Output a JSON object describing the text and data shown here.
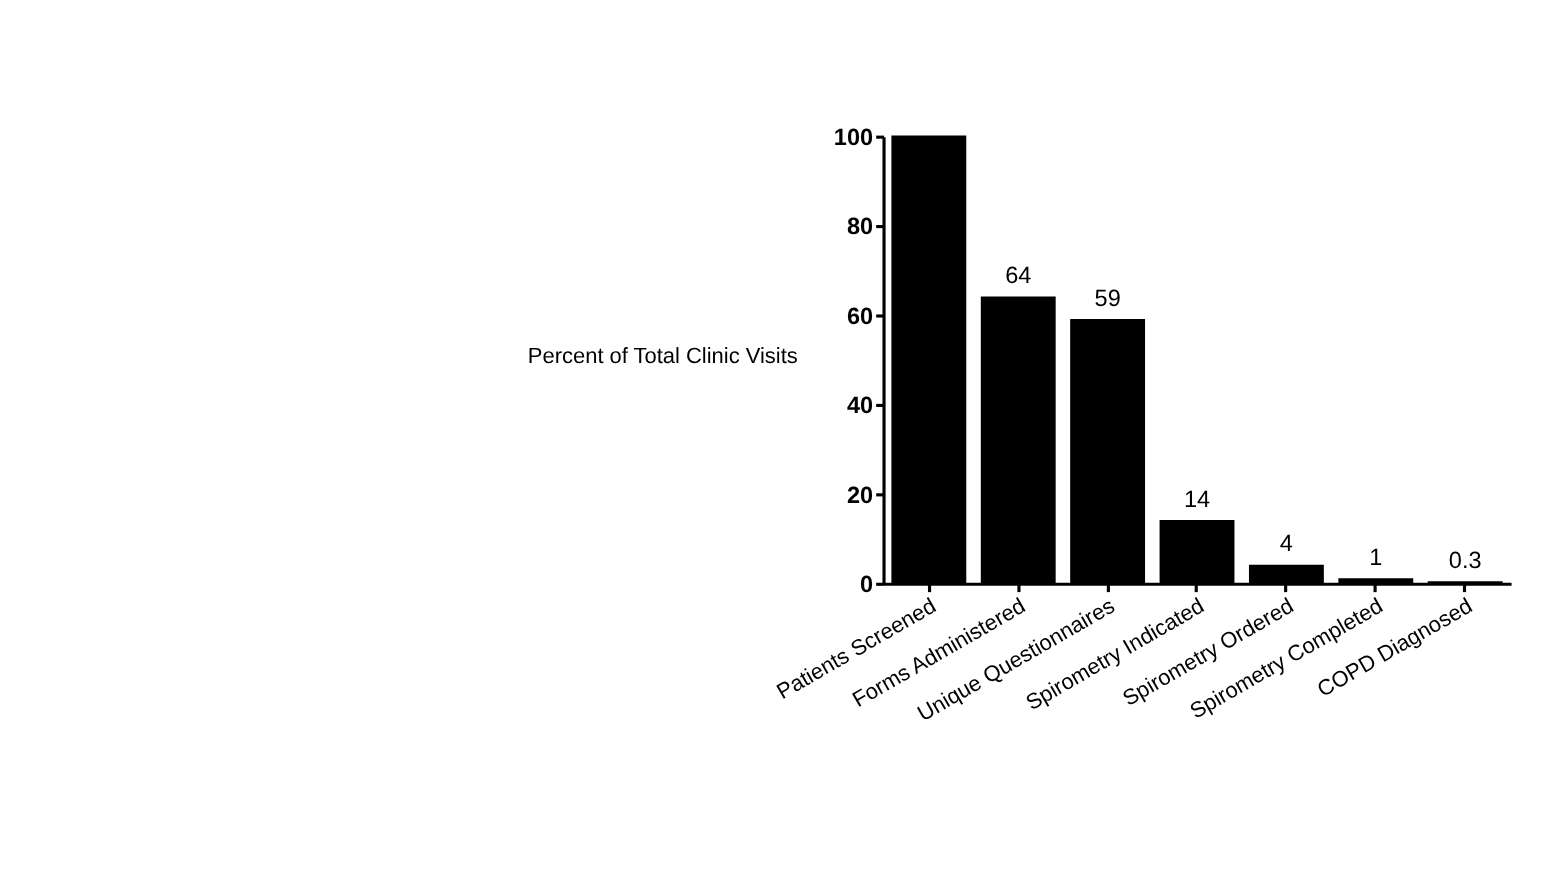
{
  "chart_data": {
    "type": "bar",
    "ylabel": "Percent of Total Clinic Visits",
    "categories": [
      "Patients Screened",
      "Forms Administered",
      "Unique Questionnaires",
      "Spirometry Indicated",
      "Spirometry Ordered",
      "Spirometry Completed",
      "COPD Diagnosed"
    ],
    "values": [
      100,
      64,
      59,
      14,
      4,
      1,
      0.3
    ],
    "value_labels": [
      null,
      "64",
      "59",
      "14",
      "4",
      "1",
      "0.3"
    ],
    "color": "#000000",
    "ylim": [
      0,
      100
    ],
    "yticks": [
      0,
      20,
      40,
      60,
      80,
      100
    ],
    "grid": false
  }
}
